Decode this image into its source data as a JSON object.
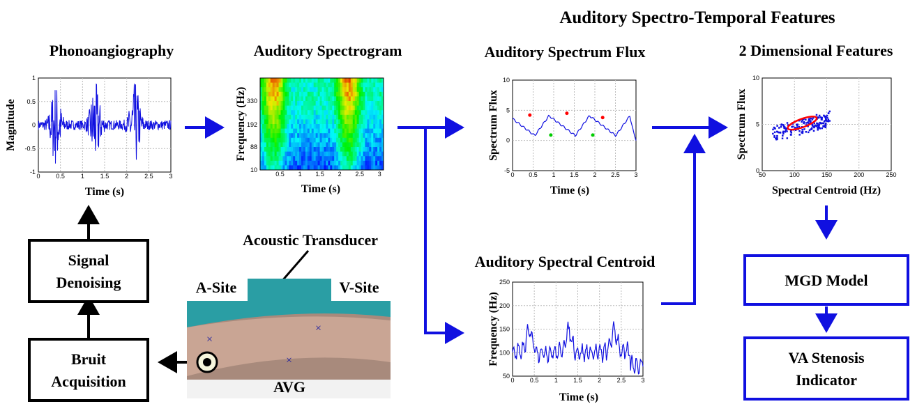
{
  "header": {
    "title": "Auditory Spectro-Temporal Features"
  },
  "panels": [
    {
      "title": "Phonoangiography",
      "xlabel": "Time (s)",
      "ylabel": "Magnitude",
      "xticks": [
        "0",
        "0.5",
        "1",
        "1.5",
        "2",
        "2.5",
        "3"
      ],
      "yticks": [
        "1",
        "0.5",
        "0",
        "-0.5",
        "-1"
      ]
    },
    {
      "title": "Auditory Spectrogram",
      "xlabel": "Time (s)",
      "ylabel": "Frequency (Hz)",
      "xticks": [
        "0.5",
        "1",
        "1.5",
        "2",
        "2.5",
        "3"
      ],
      "yticks": [
        "330",
        "192",
        "88",
        "10"
      ]
    },
    {
      "title": "Auditory Spectrum Flux",
      "xlabel": "Time (s)",
      "ylabel": "Spectrum Flux",
      "xticks": [
        "0",
        "0.5",
        "1",
        "1.5",
        "2",
        "2.5",
        "3"
      ],
      "yticks": [
        "10",
        "5",
        "0",
        "-5"
      ]
    },
    {
      "title": "2 Dimensional Features",
      "xlabel": "Spectral Centroid (Hz)",
      "ylabel": "Spectrum Flux",
      "xticks": [
        "50",
        "100",
        "150",
        "200",
        "250"
      ],
      "yticks": [
        "10",
        "5",
        "0"
      ]
    },
    {
      "title": "Auditory Spectral Centroid",
      "xlabel": "Time (s)",
      "ylabel": "Frequency (Hz)",
      "xticks": [
        "0",
        "0.5",
        "1",
        "1.5",
        "2",
        "2.5",
        "3"
      ],
      "yticks": [
        "250",
        "200",
        "150",
        "100",
        "50"
      ]
    }
  ],
  "boxes": [
    {
      "lines": [
        "Signal",
        "Denoising"
      ]
    },
    {
      "lines": [
        "Bruit",
        "Acquisition"
      ]
    },
    {
      "lines": [
        "MGD Model"
      ]
    },
    {
      "lines": [
        "VA Stenosis",
        "Indicator"
      ]
    }
  ],
  "photo": {
    "a_site": "A-Site",
    "v_site": "V-Site",
    "avg": "AVG",
    "transducer": "Acoustic Transducer"
  }
}
